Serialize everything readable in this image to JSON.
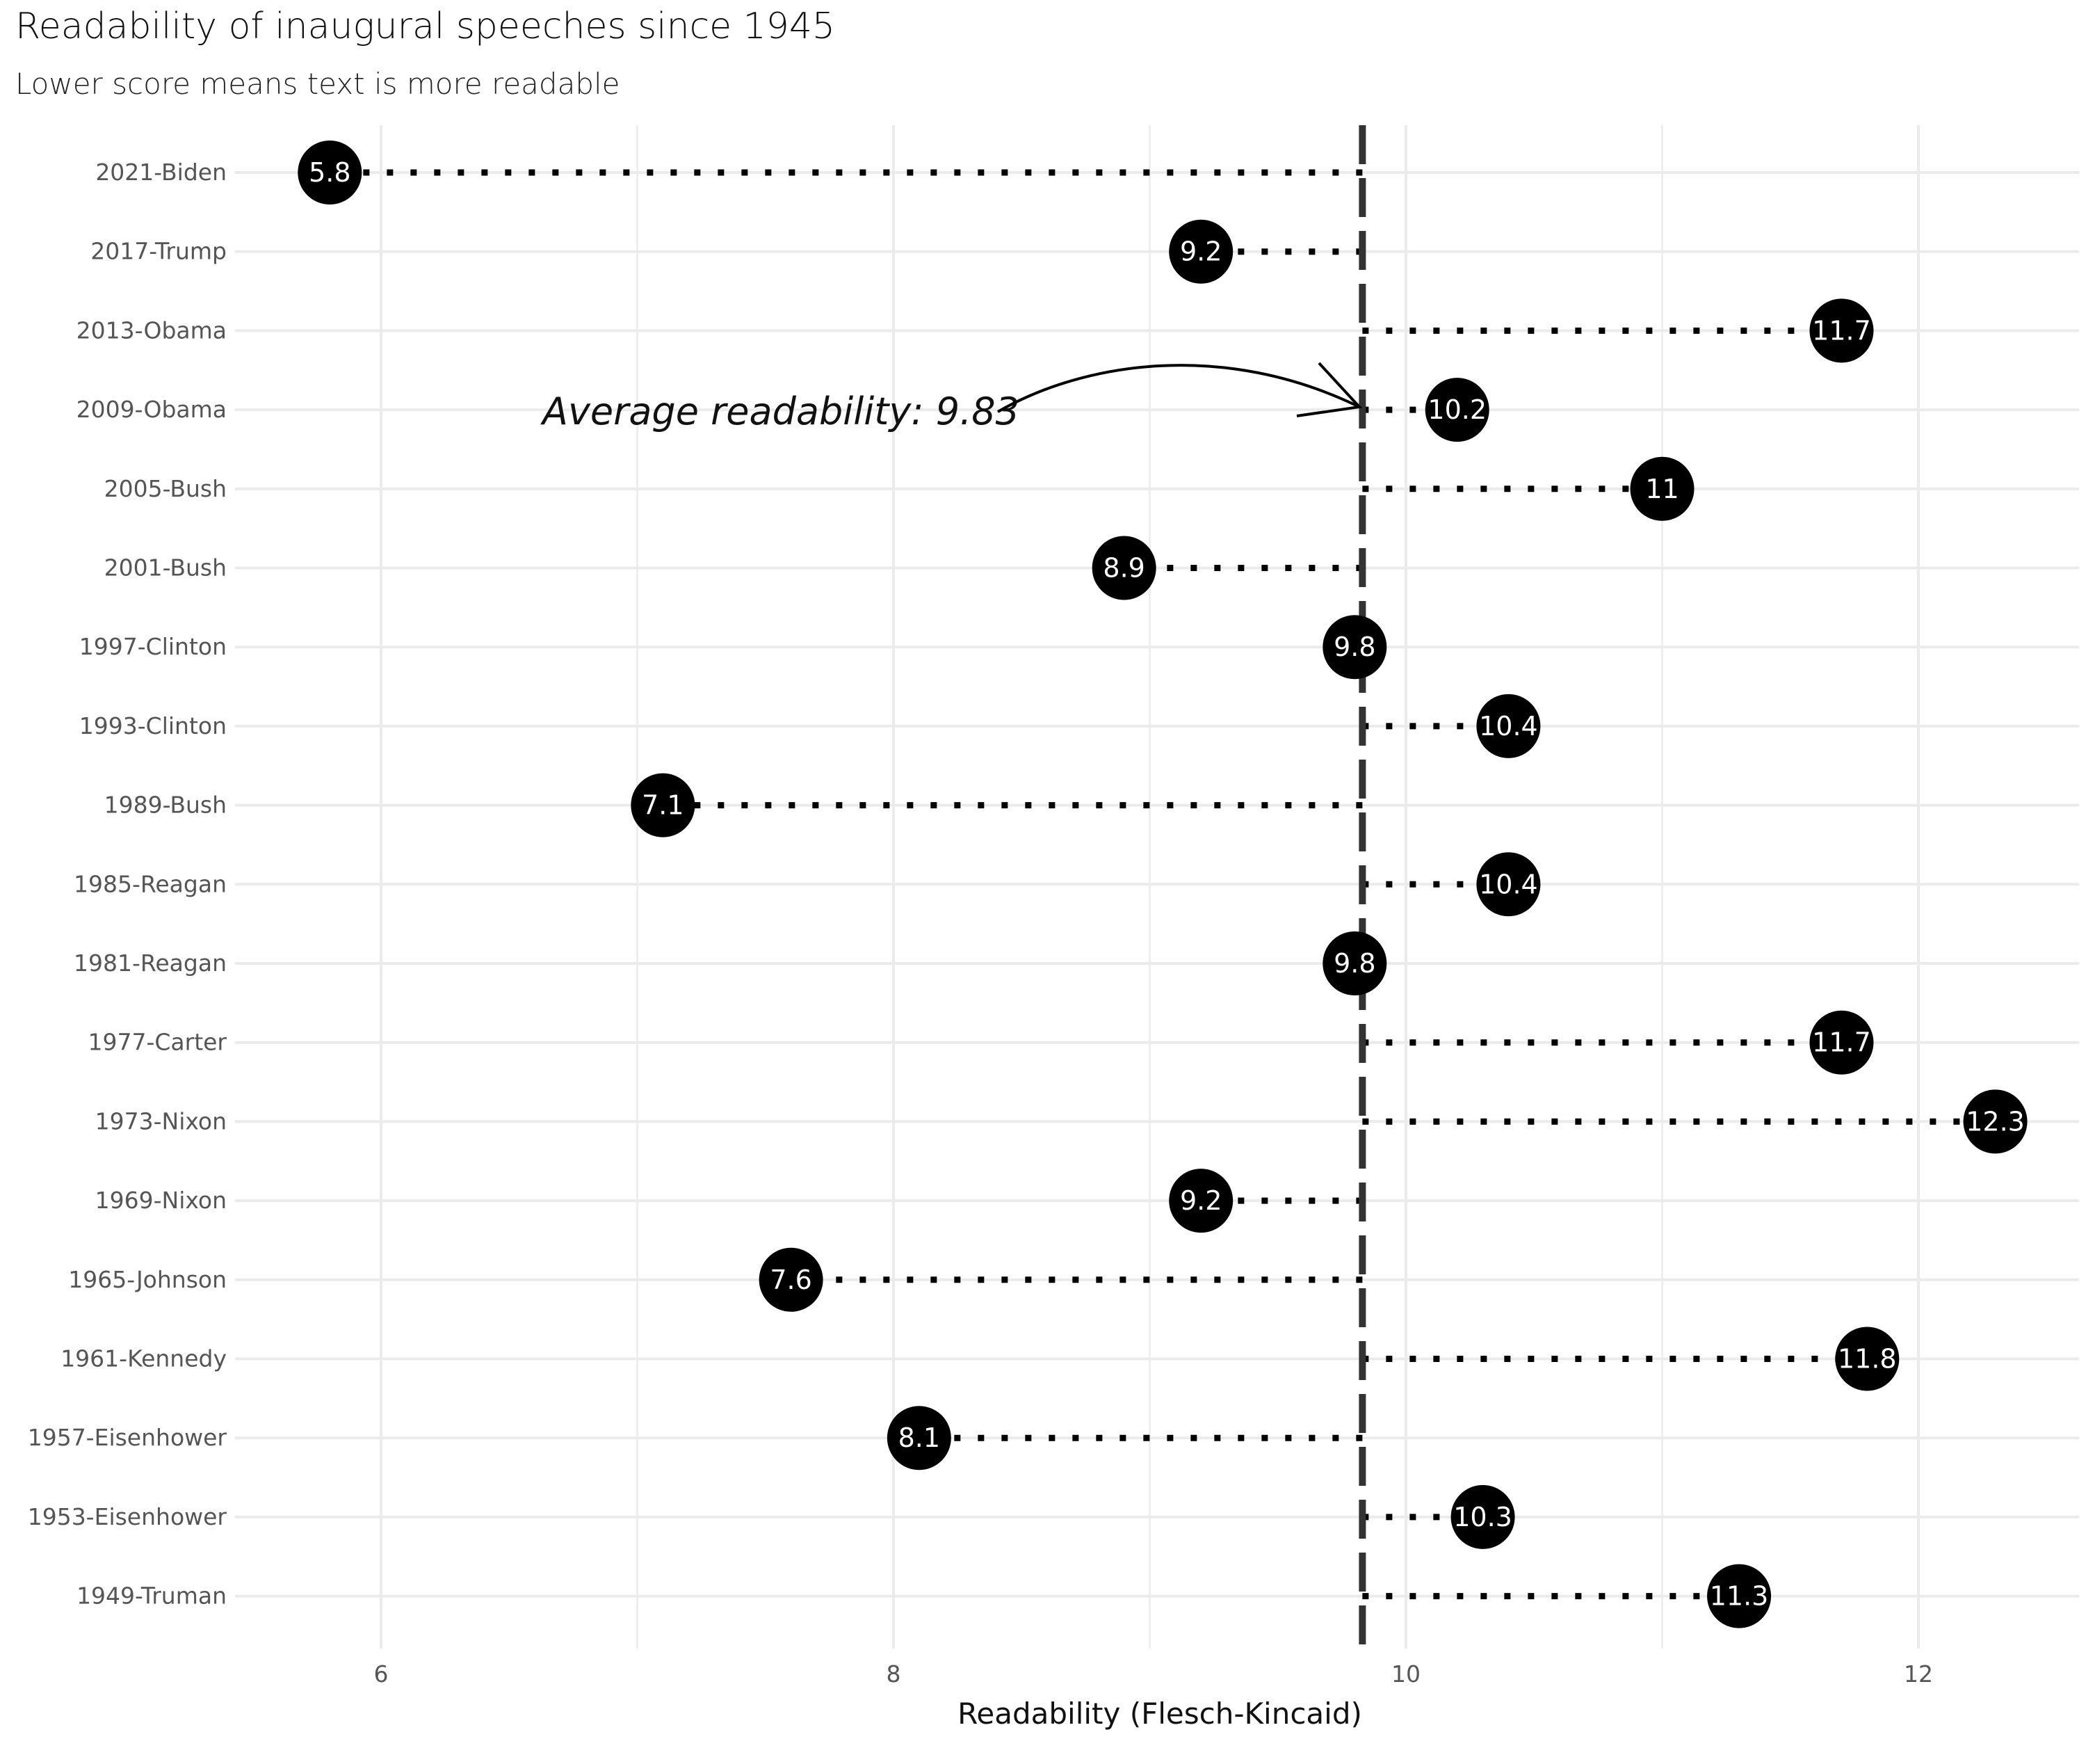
{
  "chart_data": {
    "type": "dot-lollipop",
    "title": "Readability of inaugural speeches since 1945",
    "subtitle": "Lower score means text is more readable",
    "xlabel": "Readability (Flesch-Kincaid)",
    "ylabel": "",
    "xlim": [
      5.45,
      12.6
    ],
    "x_ticks": [
      6,
      8,
      10,
      12
    ],
    "grid": true,
    "average": 9.83,
    "annotation": "Average readability: 9.83",
    "categories": [
      "2021-Biden",
      "2017-Trump",
      "2013-Obama",
      "2009-Obama",
      "2005-Bush",
      "2001-Bush",
      "1997-Clinton",
      "1993-Clinton",
      "1989-Bush",
      "1985-Reagan",
      "1981-Reagan",
      "1977-Carter",
      "1973-Nixon",
      "1969-Nixon",
      "1965-Johnson",
      "1961-Kennedy",
      "1957-Eisenhower",
      "1953-Eisenhower",
      "1949-Truman"
    ],
    "values": [
      5.8,
      9.2,
      11.7,
      10.2,
      11,
      8.9,
      9.8,
      10.4,
      7.1,
      10.4,
      9.8,
      11.7,
      12.3,
      9.2,
      7.6,
      11.8,
      8.1,
      10.3,
      11.3
    ],
    "labels": [
      "5.8",
      "9.2",
      "11.7",
      "10.2",
      "11",
      "8.9",
      "9.8",
      "10.4",
      "7.1",
      "10.4",
      "9.8",
      "11.7",
      "12.3",
      "9.2",
      "7.6",
      "11.8",
      "8.1",
      "10.3",
      "11.3"
    ],
    "colors": {
      "dot": "#000000",
      "dot_text": "#ffffff",
      "grid": "#ebebeb",
      "average_line": "#333333",
      "segment": "#000000"
    }
  }
}
